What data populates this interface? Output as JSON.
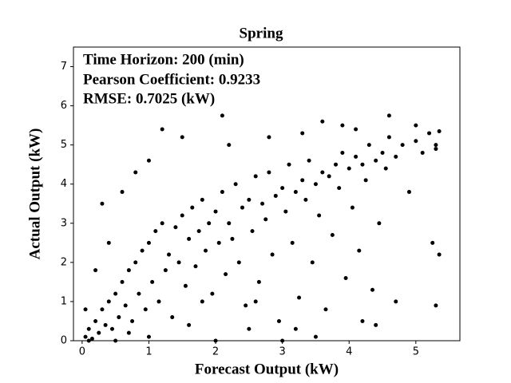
{
  "chart_data": {
    "type": "scatter",
    "title": "Spring",
    "annotations": [
      "Time Horizon: 200 (min)",
      "Pearson Coefficient: 0.9233",
      "RMSE: 0.7025 (kW)"
    ],
    "x_label": "Forecast Output (kW)",
    "y_label": "Actual Output (kW)",
    "color": "#000000",
    "xlim": [
      -0.13,
      5.66
    ],
    "ylim": [
      0,
      7.5
    ],
    "xticks": [
      0,
      1,
      2,
      3,
      4,
      5
    ],
    "yticks": [
      0,
      1,
      2,
      3,
      4,
      5,
      6,
      7
    ],
    "x": [
      0.05,
      0.1,
      0.15,
      0.2,
      0.25,
      0.3,
      0.35,
      0.4,
      0.45,
      0.5,
      0.55,
      0.6,
      0.65,
      0.7,
      0.75,
      0.8,
      0.85,
      0.9,
      0.95,
      1.0,
      1.05,
      1.1,
      1.15,
      1.2,
      1.25,
      1.3,
      1.35,
      1.4,
      1.45,
      1.5,
      1.55,
      1.6,
      1.65,
      1.7,
      1.75,
      1.8,
      1.85,
      1.9,
      1.95,
      2.0,
      2.05,
      2.1,
      2.15,
      2.2,
      2.25,
      2.3,
      2.35,
      2.4,
      2.45,
      2.5,
      2.55,
      2.6,
      2.65,
      2.7,
      2.75,
      2.8,
      2.85,
      2.9,
      2.95,
      3.0,
      3.05,
      3.1,
      3.15,
      3.2,
      3.25,
      3.3,
      3.35,
      3.4,
      3.45,
      3.5,
      3.55,
      3.6,
      3.65,
      3.7,
      3.75,
      3.8,
      3.85,
      3.9,
      3.95,
      4.0,
      4.05,
      4.1,
      4.15,
      4.2,
      4.25,
      4.3,
      4.35,
      4.4,
      4.45,
      4.5,
      4.55,
      4.6,
      4.7,
      4.8,
      4.9,
      5.0,
      5.1,
      5.2,
      5.3,
      5.35,
      5.3,
      5.35,
      5.25,
      4.7,
      4.2,
      0.05,
      0.3,
      0.6,
      0.8,
      1.0,
      1.2,
      1.5,
      2.1,
      3.6,
      4.6,
      0.1,
      0.5,
      1.0,
      2.0,
      3.0,
      3.5,
      4.4,
      0.2,
      0.4,
      2.2,
      2.8,
      3.3,
      3.9,
      4.1,
      5.0,
      5.3,
      0.7,
      1.6,
      2.5,
      1.8,
      2.6,
      3.2
    ],
    "y": [
      0.1,
      0.3,
      0.05,
      0.5,
      0.2,
      0.8,
      0.4,
      1.0,
      0.3,
      1.2,
      0.6,
      1.5,
      0.9,
      1.8,
      0.5,
      2.0,
      1.2,
      2.3,
      0.8,
      2.5,
      1.5,
      2.8,
      1.0,
      3.0,
      1.8,
      2.2,
      0.6,
      2.9,
      2.0,
      3.2,
      1.4,
      2.6,
      3.4,
      1.9,
      2.8,
      3.6,
      2.3,
      3.0,
      1.2,
      3.3,
      2.5,
      3.8,
      1.7,
      3.0,
      2.6,
      4.0,
      2.0,
      3.4,
      0.9,
      3.6,
      2.8,
      4.2,
      1.5,
      3.5,
      3.1,
      4.3,
      2.2,
      3.7,
      0.5,
      3.9,
      3.3,
      4.5,
      2.5,
      3.8,
      1.1,
      4.1,
      3.6,
      4.6,
      2.0,
      4.0,
      3.2,
      4.3,
      0.8,
      4.2,
      2.7,
      4.5,
      3.9,
      4.8,
      1.6,
      4.4,
      3.4,
      4.7,
      2.3,
      4.5,
      4.1,
      5.0,
      1.3,
      4.6,
      3.0,
      4.8,
      4.4,
      5.2,
      4.7,
      5.0,
      3.8,
      5.1,
      4.8,
      5.3,
      5.0,
      5.35,
      0.9,
      2.2,
      2.5,
      1.0,
      0.5,
      0.8,
      3.5,
      3.8,
      4.3,
      4.6,
      5.4,
      5.2,
      5.75,
      5.6,
      5.75,
      0.0,
      0.0,
      0.1,
      0.0,
      0.0,
      0.1,
      0.4,
      1.8,
      2.5,
      5.0,
      5.2,
      5.3,
      5.5,
      5.4,
      5.5,
      4.9,
      0.2,
      0.4,
      0.3,
      1.0,
      1.0,
      0.3
    ]
  }
}
